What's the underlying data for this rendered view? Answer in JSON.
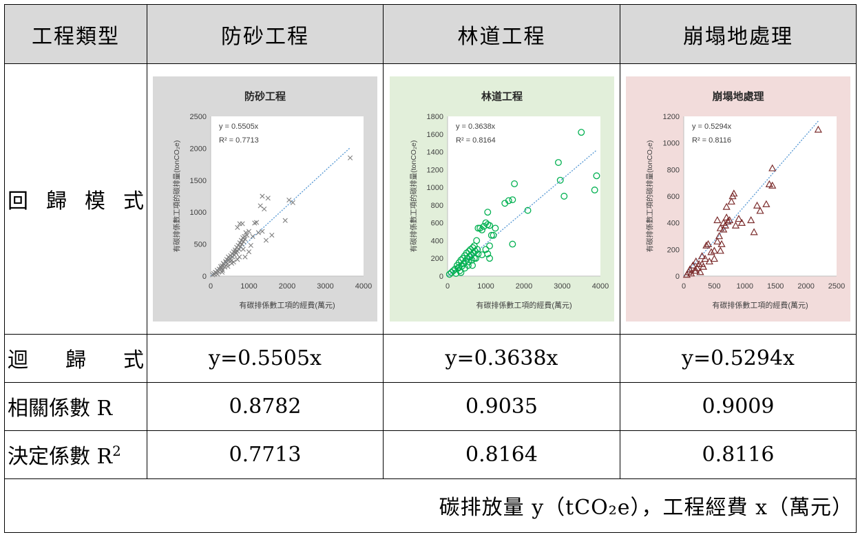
{
  "table": {
    "headers": [
      "工程類型",
      "防砂工程",
      "林道工程",
      "崩塌地處理"
    ],
    "row_labels": {
      "model": "回歸模式",
      "equation": "迴歸式",
      "r": "相關係數 R",
      "r2_prefix": "決定係數 R",
      "r2_sup": "2"
    },
    "equations": [
      "y=0.5505x",
      "y=0.3638x",
      "y=0.5294x"
    ],
    "r_values": [
      "0.8782",
      "0.9035",
      "0.9009"
    ],
    "r2_values": [
      "0.7713",
      "0.8164",
      "0.8116"
    ],
    "footnote": "碳排放量 y（tCO₂e），工程經費 x（萬元）"
  },
  "chart_data": [
    {
      "type": "scatter",
      "title": "防砂工程",
      "xlabel": "有碳排係數工項的經費(萬元)",
      "ylabel": "有碳排係數工項的碳排量(tonCO₂e)",
      "xlim": [
        0,
        4000
      ],
      "ylim": [
        0,
        2500
      ],
      "x_ticks": [
        0,
        1000,
        2000,
        3000,
        4000
      ],
      "y_ticks": [
        0,
        500,
        1000,
        1500,
        2000,
        2500
      ],
      "marker": "x",
      "marker_color": "#7f7f7f",
      "background": "#d9d9d9",
      "trend": {
        "slope": 0.5505,
        "x_end": 3650,
        "color": "#5b9bd5"
      },
      "annotation_eq": "y = 0.5505x",
      "annotation_r2": "R² = 0.7713",
      "points": [
        [
          50,
          20
        ],
        [
          80,
          40
        ],
        [
          100,
          30
        ],
        [
          120,
          60
        ],
        [
          150,
          50
        ],
        [
          170,
          90
        ],
        [
          200,
          70
        ],
        [
          220,
          110
        ],
        [
          250,
          100
        ],
        [
          260,
          150
        ],
        [
          280,
          120
        ],
        [
          300,
          160
        ],
        [
          310,
          90
        ],
        [
          330,
          200
        ],
        [
          350,
          180
        ],
        [
          370,
          140
        ],
        [
          390,
          230
        ],
        [
          400,
          210
        ],
        [
          420,
          260
        ],
        [
          440,
          190
        ],
        [
          460,
          300
        ],
        [
          480,
          250
        ],
        [
          500,
          280
        ],
        [
          520,
          320
        ],
        [
          540,
          240
        ],
        [
          560,
          350
        ],
        [
          580,
          300
        ],
        [
          600,
          380
        ],
        [
          620,
          330
        ],
        [
          640,
          410
        ],
        [
          660,
          360
        ],
        [
          680,
          450
        ],
        [
          700,
          390
        ],
        [
          720,
          480
        ],
        [
          740,
          420
        ],
        [
          760,
          520
        ],
        [
          780,
          460
        ],
        [
          800,
          560
        ],
        [
          820,
          500
        ],
        [
          840,
          600
        ],
        [
          860,
          540
        ],
        [
          880,
          620
        ],
        [
          900,
          580
        ],
        [
          920,
          680
        ],
        [
          700,
          760
        ],
        [
          830,
          820
        ],
        [
          760,
          820
        ],
        [
          650,
          380
        ],
        [
          550,
          200
        ],
        [
          450,
          150
        ],
        [
          950,
          640
        ],
        [
          1000,
          700
        ],
        [
          1050,
          480
        ],
        [
          1100,
          620
        ],
        [
          1150,
          830
        ],
        [
          1200,
          840
        ],
        [
          1300,
          1100
        ],
        [
          1350,
          1250
        ],
        [
          1400,
          1050
        ],
        [
          1450,
          560
        ],
        [
          1500,
          1220
        ],
        [
          1250,
          680
        ],
        [
          1350,
          700
        ],
        [
          1600,
          640
        ],
        [
          1950,
          870
        ],
        [
          2050,
          1190
        ],
        [
          2150,
          1150
        ],
        [
          3650,
          1850
        ],
        [
          300,
          60
        ],
        [
          180,
          30
        ],
        [
          600,
          220
        ],
        [
          700,
          260
        ],
        [
          900,
          300
        ],
        [
          1000,
          380
        ],
        [
          850,
          420
        ],
        [
          750,
          300
        ]
      ]
    },
    {
      "type": "scatter",
      "title": "林道工程",
      "xlabel": "有碳排係數工項的經費(萬元)",
      "ylabel": "有碳排係數工項的碳排量(tonCO₂e)",
      "xlim": [
        0,
        4000
      ],
      "ylim": [
        0,
        1800
      ],
      "x_ticks": [
        0,
        1000,
        2000,
        3000,
        4000
      ],
      "y_ticks": [
        0,
        200,
        400,
        600,
        800,
        1000,
        1200,
        1400,
        1600,
        1800
      ],
      "marker": "circle",
      "marker_color": "#00b050",
      "background": "#e2efda",
      "trend": {
        "slope": 0.3638,
        "x_end": 3900,
        "color": "#5b9bd5"
      },
      "annotation_eq": "y = 0.3638x",
      "annotation_r2": "R² = 0.8164",
      "points": [
        [
          50,
          20
        ],
        [
          100,
          40
        ],
        [
          150,
          60
        ],
        [
          200,
          80
        ],
        [
          220,
          30
        ],
        [
          250,
          120
        ],
        [
          280,
          90
        ],
        [
          300,
          150
        ],
        [
          320,
          60
        ],
        [
          350,
          180
        ],
        [
          370,
          110
        ],
        [
          400,
          200
        ],
        [
          420,
          140
        ],
        [
          450,
          230
        ],
        [
          470,
          170
        ],
        [
          500,
          260
        ],
        [
          520,
          200
        ],
        [
          540,
          120
        ],
        [
          560,
          280
        ],
        [
          580,
          220
        ],
        [
          600,
          300
        ],
        [
          620,
          240
        ],
        [
          640,
          180
        ],
        [
          660,
          320
        ],
        [
          680,
          260
        ],
        [
          700,
          340
        ],
        [
          720,
          280
        ],
        [
          740,
          200
        ],
        [
          760,
          400
        ],
        [
          780,
          300
        ],
        [
          800,
          540
        ],
        [
          850,
          540
        ],
        [
          900,
          520
        ],
        [
          950,
          560
        ],
        [
          1000,
          600
        ],
        [
          1050,
          580
        ],
        [
          1100,
          570
        ],
        [
          1150,
          460
        ],
        [
          1200,
          460
        ],
        [
          1250,
          540
        ],
        [
          1000,
          300
        ],
        [
          1050,
          250
        ],
        [
          1100,
          200
        ],
        [
          1100,
          340
        ],
        [
          900,
          240
        ],
        [
          1500,
          820
        ],
        [
          1600,
          850
        ],
        [
          1700,
          860
        ],
        [
          1750,
          1040
        ],
        [
          1700,
          360
        ],
        [
          2100,
          740
        ],
        [
          2900,
          1280
        ],
        [
          2950,
          1080
        ],
        [
          3050,
          900
        ],
        [
          3500,
          1620
        ],
        [
          3850,
          970
        ],
        [
          3900,
          1130
        ],
        [
          1050,
          720
        ],
        [
          650,
          120
        ],
        [
          450,
          90
        ],
        [
          350,
          40
        ],
        [
          700,
          200
        ],
        [
          800,
          250
        ],
        [
          300,
          100
        ],
        [
          550,
          160
        ]
      ]
    },
    {
      "type": "scatter",
      "title": "崩塌地處理",
      "xlabel": "有碳排係數工項的經費(萬元)",
      "ylabel": "有碳排係數工項的碳排量(tonCO₂e)",
      "xlim": [
        0,
        2500
      ],
      "ylim": [
        0,
        1200
      ],
      "x_ticks": [
        0,
        500,
        1000,
        1500,
        2000,
        2500
      ],
      "y_ticks": [
        0,
        200,
        400,
        600,
        800,
        1000,
        1200
      ],
      "marker": "triangle",
      "marker_color": "#7b2c2c",
      "background": "#f2dcdb",
      "trend": {
        "slope": 0.5294,
        "x_end": 2200,
        "color": "#5b9bd5"
      },
      "annotation_eq": "y = 0.5294x",
      "annotation_r2": "R² = 0.8116",
      "points": [
        [
          50,
          10
        ],
        [
          80,
          30
        ],
        [
          100,
          50
        ],
        [
          120,
          20
        ],
        [
          150,
          80
        ],
        [
          180,
          40
        ],
        [
          200,
          110
        ],
        [
          220,
          60
        ],
        [
          250,
          90
        ],
        [
          270,
          30
        ],
        [
          300,
          150
        ],
        [
          320,
          70
        ],
        [
          350,
          130
        ],
        [
          370,
          230
        ],
        [
          400,
          240
        ],
        [
          420,
          110
        ],
        [
          450,
          180
        ],
        [
          500,
          190
        ],
        [
          550,
          260
        ],
        [
          580,
          300
        ],
        [
          600,
          360
        ],
        [
          620,
          240
        ],
        [
          650,
          400
        ],
        [
          680,
          380
        ],
        [
          700,
          440
        ],
        [
          720,
          410
        ],
        [
          750,
          420
        ],
        [
          780,
          560
        ],
        [
          800,
          600
        ],
        [
          820,
          620
        ],
        [
          700,
          520
        ],
        [
          650,
          350
        ],
        [
          550,
          420
        ],
        [
          600,
          190
        ],
        [
          500,
          130
        ],
        [
          850,
          380
        ],
        [
          900,
          430
        ],
        [
          950,
          400
        ],
        [
          1100,
          420
        ],
        [
          1150,
          330
        ],
        [
          1200,
          530
        ],
        [
          1250,
          490
        ],
        [
          1350,
          540
        ],
        [
          1400,
          690
        ],
        [
          1450,
          680
        ],
        [
          1450,
          810
        ],
        [
          2200,
          1100
        ],
        [
          300,
          90
        ],
        [
          200,
          40
        ]
      ]
    }
  ]
}
